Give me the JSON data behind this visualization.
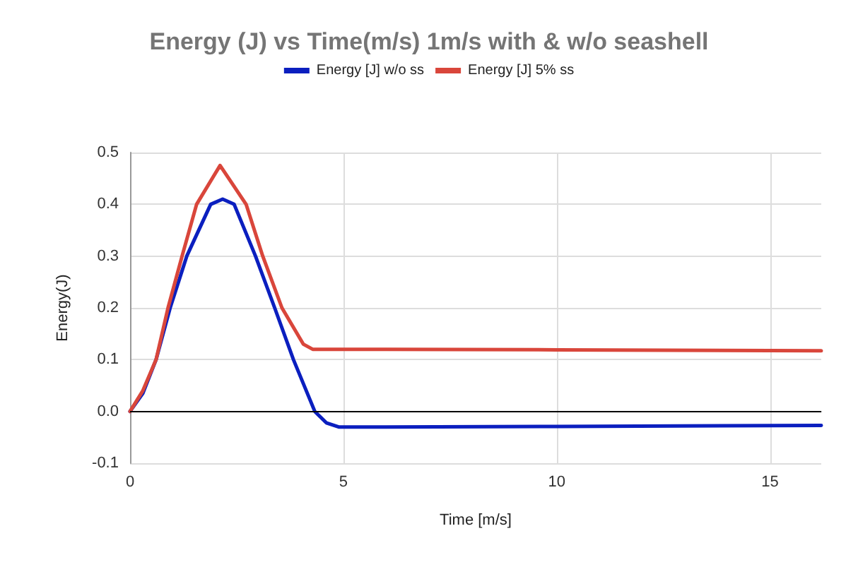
{
  "chart_data": {
    "type": "line",
    "title": "Energy (J) vs Time(m/s) 1m/s with & w/o seashell",
    "xlabel": "Time [m/s]",
    "ylabel": "Energy(J)",
    "series": [
      {
        "name": "Energy [J] w/o ss",
        "color": "#0b1fbf",
        "x": [
          0,
          0.3,
          0.61,
          0.94,
          1.33,
          1.89,
          2.17,
          2.44,
          2.94,
          3.39,
          3.83,
          4.33,
          4.6,
          4.89,
          6,
          10,
          16.2
        ],
        "values": [
          0,
          0.035,
          0.1,
          0.2,
          0.3,
          0.4,
          0.41,
          0.4,
          0.3,
          0.2,
          0.1,
          0,
          -0.022,
          -0.03,
          -0.03,
          -0.029,
          -0.027
        ]
      },
      {
        "name": "Energy [J] 5% ss",
        "color": "#d9463b",
        "x": [
          0,
          0.3,
          0.61,
          0.89,
          1.22,
          1.56,
          2.11,
          2.72,
          3.11,
          3.56,
          4.06,
          4.28,
          6,
          10,
          16.2
        ],
        "values": [
          0,
          0.04,
          0.1,
          0.2,
          0.3,
          0.4,
          0.475,
          0.4,
          0.3,
          0.2,
          0.13,
          0.12,
          0.12,
          0.119,
          0.117
        ]
      }
    ],
    "xlim": [
      0,
      16.2
    ],
    "xticks": [
      0,
      5,
      10,
      15
    ],
    "ylim": [
      -0.1,
      0.5
    ],
    "yticks": [
      {
        "value": -0.1,
        "label": "-0.1"
      },
      {
        "value": 0,
        "label": "0.0"
      },
      {
        "value": 0.1,
        "label": "0.1"
      },
      {
        "value": 0.2,
        "label": "0.2"
      },
      {
        "value": 0.3,
        "label": "0.3"
      },
      {
        "value": 0.4,
        "label": "0.4"
      },
      {
        "value": 0.5,
        "label": "0.5"
      }
    ],
    "ref_lines": [
      {
        "axis": "y",
        "value": 0,
        "color": "#000000"
      }
    ],
    "grid": true,
    "legend": "top",
    "marker": "none",
    "line_style": "solid"
  }
}
